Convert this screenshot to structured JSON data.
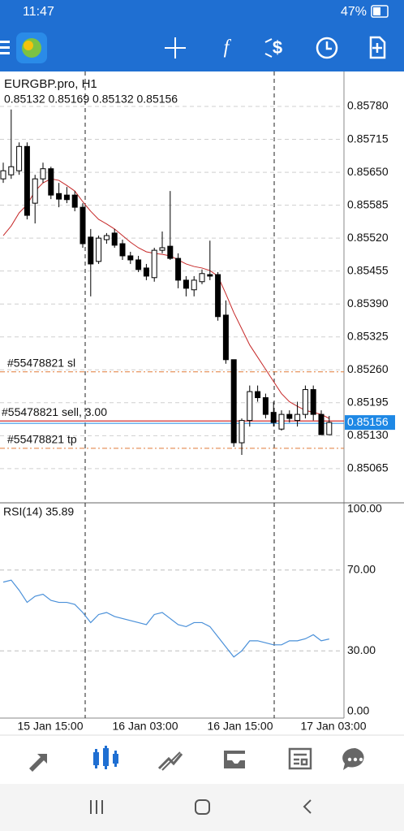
{
  "status_bar": {
    "time": "11:47",
    "battery": "47%"
  },
  "chart_data": {
    "type": "candlestick",
    "title": "EURGBP.pro, H1",
    "ohlc_text": "0.85132 0.85169 0.85132 0.85156",
    "open": [
      0.85637,
      0.85645,
      0.85653,
      0.85701,
      0.85589,
      0.85637,
      0.85657,
      0.85608,
      0.85605,
      0.85605,
      0.85581,
      0.85522,
      0.85474,
      0.85517,
      0.8553,
      0.85509,
      0.85485,
      0.85477,
      0.85461,
      0.85442,
      0.85496,
      0.85504,
      0.8548,
      0.85437,
      0.85418,
      0.85434,
      0.85448,
      0.85448,
      0.85368,
      0.8528,
      0.85116,
      0.8516,
      0.85217,
      0.85205,
      0.85176,
      0.85143,
      0.85172,
      0.8516,
      0.85172,
      0.85221,
      0.85172,
      0.85132
    ],
    "high": [
      0.85669,
      0.85774,
      0.85709,
      0.85709,
      0.85645,
      0.85669,
      0.85661,
      0.85629,
      0.85621,
      0.85613,
      0.85589,
      0.85538,
      0.85525,
      0.8553,
      0.85538,
      0.85517,
      0.85493,
      0.85485,
      0.85469,
      0.85501,
      0.85533,
      0.85613,
      0.8549,
      0.85445,
      0.85445,
      0.85458,
      0.85515,
      0.85453,
      0.85397,
      0.8528,
      0.85164,
      0.85229,
      0.85229,
      0.85213,
      0.85197,
      0.8518,
      0.8518,
      0.85197,
      0.85229,
      0.85229,
      0.8518,
      0.85169
    ],
    "low": [
      0.85629,
      0.85637,
      0.85645,
      0.85557,
      0.85549,
      0.85629,
      0.85597,
      0.85581,
      0.85589,
      0.85573,
      0.85501,
      0.85405,
      0.85469,
      0.85509,
      0.85501,
      0.85477,
      0.85469,
      0.85453,
      0.85437,
      0.85434,
      0.8549,
      0.85477,
      0.85421,
      0.85405,
      0.85405,
      0.85429,
      0.85437,
      0.85357,
      0.85272,
      0.85108,
      0.85092,
      0.85148,
      0.85197,
      0.85164,
      0.85148,
      0.8514,
      0.85156,
      0.85148,
      0.85164,
      0.8516,
      0.85132,
      0.85132
    ],
    "close": [
      0.85653,
      0.85661,
      0.85701,
      0.85565,
      0.85637,
      0.85657,
      0.85605,
      0.85597,
      0.85596,
      0.85581,
      0.85509,
      0.85469,
      0.8552,
      0.85525,
      0.85506,
      0.85485,
      0.85477,
      0.85458,
      0.85445,
      0.85496,
      0.85501,
      0.8548,
      0.85437,
      0.85421,
      0.85437,
      0.8545,
      0.85445,
      0.85365,
      0.8528,
      0.85116,
      0.8516,
      0.85217,
      0.85205,
      0.85172,
      0.85156,
      0.85172,
      0.85164,
      0.85172,
      0.85221,
      0.85172,
      0.85132,
      0.85156
    ],
    "up_color": "#ffffff",
    "down_color": "#000000",
    "ma": {
      "color": "#c62828",
      "values": [
        0.85525,
        0.85544,
        0.8557,
        0.85586,
        0.85613,
        0.85629,
        0.85637,
        0.85634,
        0.85624,
        0.85613,
        0.85592,
        0.85573,
        0.85557,
        0.85548,
        0.85538,
        0.85525,
        0.85512,
        0.85501,
        0.85493,
        0.8549,
        0.85488,
        0.85485,
        0.85477,
        0.85469,
        0.85464,
        0.85461,
        0.85456,
        0.85445,
        0.8541,
        0.85373,
        0.85341,
        0.85309,
        0.85285,
        0.85261,
        0.85237,
        0.85213,
        0.85197,
        0.85188,
        0.8518,
        0.85176,
        0.85172,
        0.85164
      ]
    },
    "ylim": [
      0.84999,
      0.85849
    ],
    "yticks": [
      {
        "value": 0.8578,
        "label": "0.85780"
      },
      0.85715,
      {
        "value": 0.8565,
        "label": "0.85650"
      },
      0.85585,
      {
        "value": 0.8552,
        "label": "0.85520"
      },
      0.85455,
      {
        "value": 0.8539,
        "label": "0.85390"
      },
      0.85325,
      {
        "value": 0.8526,
        "label": "0.85260"
      },
      0.85195,
      {
        "value": 0.8513,
        "label": "0.85130"
      },
      0.85065
    ],
    "grid": true,
    "current_price": {
      "value": 0.85156,
      "label": "0.85156",
      "color": "#1e88e5"
    },
    "orders": [
      {
        "label": "#55478821 sl",
        "value": 0.85256,
        "color": "#e07b39"
      },
      {
        "label": "#55478821 sell, 3.00",
        "value": 0.85159,
        "color": "#d32f2f"
      },
      {
        "label": "#55478821 tp",
        "value": 0.85105,
        "color": "#e07b39"
      }
    ],
    "xticks": [
      "15 Jan 15:00",
      "16 Jan 03:00",
      "16 Jan 15:00",
      "17 Jan 03:00"
    ],
    "rsi": {
      "title": "RSI(14) 35.89",
      "color": "#4a90d9",
      "values": [
        64,
        65,
        60,
        54,
        57,
        58,
        55,
        54,
        54,
        53,
        49,
        44,
        48,
        49,
        47,
        46,
        45,
        44,
        43,
        48,
        49,
        46,
        43,
        42,
        44,
        44,
        42,
        37,
        32,
        27,
        30,
        35,
        35,
        34,
        33,
        33,
        35,
        35,
        36,
        38,
        35,
        35.89
      ],
      "ylim": [
        0,
        100
      ],
      "yticks": [
        {
          "value": 100,
          "label": "100.00"
        },
        {
          "value": 70,
          "label": "70.00"
        },
        {
          "value": 30,
          "label": "30.00"
        },
        {
          "value": 0,
          "label": "0.00"
        }
      ]
    }
  }
}
